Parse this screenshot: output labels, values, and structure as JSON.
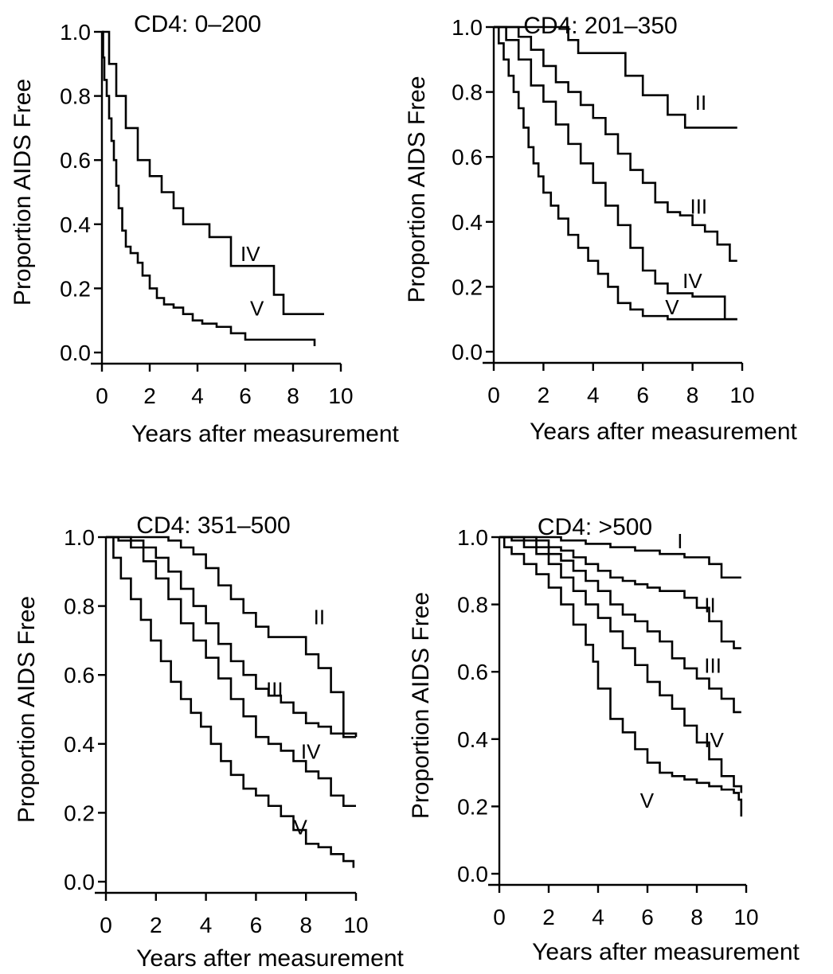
{
  "chart_data": [
    {
      "type": "line",
      "title": "CD4: 0–200",
      "xlabel": "Years after measurement",
      "ylabel": "Proportion AIDS Free",
      "xlim": [
        0,
        10
      ],
      "ylim": [
        0,
        1
      ],
      "xticks": [
        "0",
        "2",
        "4",
        "6",
        "8",
        "10"
      ],
      "yticks": [
        "0.0",
        "0.2",
        "0.4",
        "0.6",
        "0.8",
        "1.0"
      ],
      "series": [
        {
          "name": "IV",
          "step": true,
          "x": [
            0,
            0.3,
            0.6,
            1.0,
            1.5,
            2.0,
            2.5,
            3.0,
            3.4,
            4.0,
            4.5,
            5.4,
            7.2,
            7.6,
            9.3
          ],
          "y": [
            1.0,
            0.9,
            0.8,
            0.7,
            0.6,
            0.55,
            0.5,
            0.45,
            0.4,
            0.4,
            0.36,
            0.27,
            0.18,
            0.12,
            0.12
          ]
        },
        {
          "name": "V",
          "step": true,
          "x": [
            0,
            0.05,
            0.1,
            0.2,
            0.3,
            0.4,
            0.5,
            0.6,
            0.7,
            0.85,
            1.0,
            1.2,
            1.5,
            1.7,
            2.0,
            2.3,
            2.6,
            3.0,
            3.4,
            3.8,
            4.2,
            4.8,
            5.4,
            6.0,
            7.0,
            8.9
          ],
          "y": [
            1.0,
            0.92,
            0.85,
            0.8,
            0.73,
            0.66,
            0.6,
            0.52,
            0.45,
            0.38,
            0.33,
            0.31,
            0.28,
            0.24,
            0.2,
            0.17,
            0.15,
            0.14,
            0.12,
            0.1,
            0.09,
            0.08,
            0.06,
            0.04,
            0.04,
            0.02
          ]
        }
      ],
      "labels": [
        {
          "text": "IV",
          "x": 5.8,
          "y": 0.31
        },
        {
          "text": "V",
          "x": 6.2,
          "y": 0.14
        }
      ]
    },
    {
      "type": "line",
      "title": "CD4: 201–350",
      "xlabel": "Years after measurement",
      "ylabel": "Proportion AIDS Free",
      "xlim": [
        0,
        10
      ],
      "ylim": [
        0,
        1
      ],
      "xticks": [
        "0",
        "2",
        "4",
        "6",
        "8",
        "10"
      ],
      "yticks": [
        "0.0",
        "0.2",
        "0.4",
        "0.6",
        "0.8",
        "1.0"
      ],
      "series": [
        {
          "name": "II",
          "step": true,
          "x": [
            0,
            3.0,
            3.4,
            5.3,
            6.0,
            7.0,
            7.7,
            9.8
          ],
          "y": [
            1.0,
            0.96,
            0.92,
            0.85,
            0.79,
            0.73,
            0.69,
            0.69
          ]
        },
        {
          "name": "III",
          "step": true,
          "x": [
            0,
            1.0,
            1.5,
            2.0,
            2.5,
            3.0,
            3.5,
            4.0,
            4.5,
            5.0,
            5.5,
            6.0,
            6.5,
            7.0,
            7.5,
            8.0,
            8.5,
            9.0,
            9.5,
            9.8
          ],
          "y": [
            1.0,
            0.97,
            0.93,
            0.88,
            0.83,
            0.8,
            0.76,
            0.72,
            0.67,
            0.61,
            0.56,
            0.52,
            0.46,
            0.43,
            0.42,
            0.39,
            0.37,
            0.33,
            0.28,
            0.28
          ]
        },
        {
          "name": "IV",
          "step": true,
          "x": [
            0,
            0.5,
            1.0,
            1.5,
            2.0,
            2.5,
            3.0,
            3.5,
            4.0,
            4.5,
            5.0,
            5.5,
            6.0,
            6.5,
            7.0,
            8.0,
            9.3,
            9.8
          ],
          "y": [
            1.0,
            0.96,
            0.9,
            0.82,
            0.77,
            0.7,
            0.64,
            0.58,
            0.52,
            0.45,
            0.39,
            0.32,
            0.25,
            0.21,
            0.18,
            0.17,
            0.1,
            0.1
          ]
        },
        {
          "name": "V",
          "step": true,
          "x": [
            0,
            0.2,
            0.4,
            0.6,
            0.8,
            1.0,
            1.2,
            1.4,
            1.6,
            1.8,
            2.0,
            2.3,
            2.6,
            3.0,
            3.4,
            3.8,
            4.2,
            4.6,
            5.0,
            5.5,
            6.0,
            7.0,
            9.8
          ],
          "y": [
            1.0,
            0.95,
            0.9,
            0.85,
            0.8,
            0.75,
            0.69,
            0.63,
            0.58,
            0.54,
            0.49,
            0.45,
            0.41,
            0.36,
            0.32,
            0.28,
            0.24,
            0.2,
            0.15,
            0.13,
            0.11,
            0.1,
            0.1
          ]
        }
      ],
      "labels": [
        {
          "text": "II",
          "x": 8.1,
          "y": 0.77
        },
        {
          "text": "III",
          "x": 7.9,
          "y": 0.45
        },
        {
          "text": "IV",
          "x": 7.6,
          "y": 0.22
        },
        {
          "text": "V",
          "x": 6.9,
          "y": 0.14
        }
      ]
    },
    {
      "type": "line",
      "title": "CD4: 351–500",
      "xlabel": "Years after measurement",
      "ylabel": "Proportion AIDS Free",
      "xlim": [
        0,
        10
      ],
      "ylim": [
        0,
        1
      ],
      "xticks": [
        "0",
        "2",
        "4",
        "6",
        "8",
        "10"
      ],
      "yticks": [
        "0.0",
        "0.2",
        "0.4",
        "0.6",
        "0.8",
        "1.0"
      ],
      "series": [
        {
          "name": "II",
          "step": true,
          "x": [
            0,
            1.0,
            2.5,
            3.0,
            3.5,
            4.0,
            4.5,
            5.0,
            5.5,
            6.0,
            6.5,
            7.0,
            8.0,
            8.5,
            9.0,
            9.5,
            10.0
          ],
          "y": [
            1.0,
            1.0,
            0.99,
            0.97,
            0.95,
            0.91,
            0.86,
            0.82,
            0.78,
            0.74,
            0.71,
            0.71,
            0.66,
            0.62,
            0.55,
            0.42,
            0.42
          ]
        },
        {
          "name": "III",
          "step": true,
          "x": [
            0,
            1.0,
            1.5,
            2.0,
            2.5,
            3.0,
            3.5,
            4.0,
            4.5,
            5.0,
            5.5,
            6.0,
            6.5,
            7.0,
            7.5,
            8.0,
            8.5,
            9.0,
            10.0
          ],
          "y": [
            1.0,
            0.99,
            0.97,
            0.94,
            0.9,
            0.85,
            0.8,
            0.75,
            0.69,
            0.64,
            0.6,
            0.56,
            0.54,
            0.52,
            0.49,
            0.46,
            0.45,
            0.43,
            0.42
          ]
        },
        {
          "name": "IV",
          "step": true,
          "x": [
            0,
            0.5,
            1.0,
            1.5,
            2.0,
            2.5,
            3.0,
            3.5,
            4.0,
            4.5,
            5.0,
            5.5,
            6.0,
            6.5,
            7.0,
            7.5,
            8.0,
            8.5,
            9.0,
            9.5,
            10.0
          ],
          "y": [
            1.0,
            0.99,
            0.97,
            0.93,
            0.88,
            0.82,
            0.75,
            0.7,
            0.65,
            0.59,
            0.53,
            0.48,
            0.42,
            0.4,
            0.38,
            0.35,
            0.32,
            0.3,
            0.25,
            0.22,
            0.22
          ]
        },
        {
          "name": "V",
          "step": true,
          "x": [
            0,
            0.3,
            0.6,
            1.0,
            1.4,
            1.8,
            2.2,
            2.6,
            3.0,
            3.4,
            3.8,
            4.2,
            4.6,
            5.0,
            5.5,
            6.0,
            6.5,
            7.0,
            7.5,
            8.0,
            8.5,
            9.0,
            9.5,
            9.9
          ],
          "y": [
            1.0,
            0.94,
            0.88,
            0.82,
            0.76,
            0.7,
            0.64,
            0.58,
            0.53,
            0.49,
            0.45,
            0.4,
            0.35,
            0.31,
            0.27,
            0.25,
            0.22,
            0.19,
            0.15,
            0.11,
            0.1,
            0.08,
            0.06,
            0.04
          ]
        }
      ],
      "labels": [
        {
          "text": "II",
          "x": 8.3,
          "y": 0.77
        },
        {
          "text": "III",
          "x": 6.4,
          "y": 0.56
        },
        {
          "text": "IV",
          "x": 7.8,
          "y": 0.38
        },
        {
          "text": "V",
          "x": 7.5,
          "y": 0.16
        }
      ]
    },
    {
      "type": "line",
      "title": "CD4: >500",
      "xlabel": "Years after measurement",
      "ylabel": "Proportion AIDS Free",
      "xlim": [
        0,
        10
      ],
      "ylim": [
        0,
        1
      ],
      "xticks": [
        "0",
        "2",
        "4",
        "6",
        "8",
        "10"
      ],
      "yticks": [
        "0.0",
        "0.2",
        "0.4",
        "0.6",
        "0.8",
        "1.0"
      ],
      "series": [
        {
          "name": "I",
          "step": true,
          "x": [
            0,
            2.5,
            3.5,
            4.5,
            5.5,
            6.5,
            7.5,
            8.5,
            9.0,
            9.8
          ],
          "y": [
            1.0,
            0.99,
            0.98,
            0.97,
            0.96,
            0.95,
            0.94,
            0.92,
            0.88,
            0.88
          ]
        },
        {
          "name": "II",
          "step": true,
          "x": [
            0,
            1.5,
            2.0,
            2.5,
            3.0,
            3.5,
            4.0,
            4.5,
            5.0,
            5.5,
            6.0,
            6.5,
            7.0,
            7.5,
            8.0,
            8.5,
            9.0,
            9.5,
            9.8
          ],
          "y": [
            1.0,
            0.99,
            0.97,
            0.96,
            0.94,
            0.92,
            0.9,
            0.88,
            0.87,
            0.86,
            0.85,
            0.84,
            0.84,
            0.82,
            0.79,
            0.75,
            0.69,
            0.67,
            0.67
          ]
        },
        {
          "name": "III",
          "step": true,
          "x": [
            0,
            1.0,
            1.5,
            2.0,
            2.5,
            3.0,
            3.5,
            4.0,
            4.5,
            5.0,
            5.5,
            6.0,
            6.5,
            7.0,
            7.5,
            8.0,
            8.5,
            9.0,
            9.5,
            9.8
          ],
          "y": [
            1.0,
            0.99,
            0.97,
            0.95,
            0.93,
            0.9,
            0.87,
            0.84,
            0.8,
            0.77,
            0.75,
            0.72,
            0.69,
            0.64,
            0.61,
            0.58,
            0.55,
            0.52,
            0.48,
            0.48
          ]
        },
        {
          "name": "IV",
          "step": true,
          "x": [
            0,
            0.5,
            1.0,
            1.5,
            2.0,
            2.5,
            3.0,
            3.5,
            4.0,
            4.5,
            5.0,
            5.5,
            6.0,
            6.5,
            7.0,
            7.5,
            8.0,
            8.5,
            9.0,
            9.5,
            9.8
          ],
          "y": [
            1.0,
            0.99,
            0.97,
            0.95,
            0.92,
            0.88,
            0.84,
            0.8,
            0.76,
            0.72,
            0.67,
            0.62,
            0.57,
            0.53,
            0.49,
            0.44,
            0.39,
            0.34,
            0.29,
            0.26,
            0.24
          ]
        },
        {
          "name": "V",
          "step": true,
          "x": [
            0,
            0.2,
            0.5,
            1.0,
            1.5,
            2.0,
            2.5,
            3.0,
            3.5,
            3.8,
            4.0,
            4.5,
            5.0,
            5.5,
            6.0,
            6.5,
            7.0,
            7.5,
            8.0,
            8.5,
            9.0,
            9.5,
            9.7,
            9.8
          ],
          "y": [
            1.0,
            0.97,
            0.95,
            0.92,
            0.89,
            0.85,
            0.8,
            0.74,
            0.68,
            0.63,
            0.55,
            0.46,
            0.42,
            0.37,
            0.33,
            0.3,
            0.29,
            0.28,
            0.27,
            0.26,
            0.25,
            0.24,
            0.22,
            0.17
          ]
        }
      ],
      "labels": [
        {
          "text": "I",
          "x": 7.2,
          "y": 0.99
        },
        {
          "text": "II",
          "x": 8.3,
          "y": 0.8
        },
        {
          "text": "III",
          "x": 8.3,
          "y": 0.62
        },
        {
          "text": "IV",
          "x": 8.3,
          "y": 0.4
        },
        {
          "text": "V",
          "x": 5.7,
          "y": 0.22
        }
      ]
    }
  ]
}
